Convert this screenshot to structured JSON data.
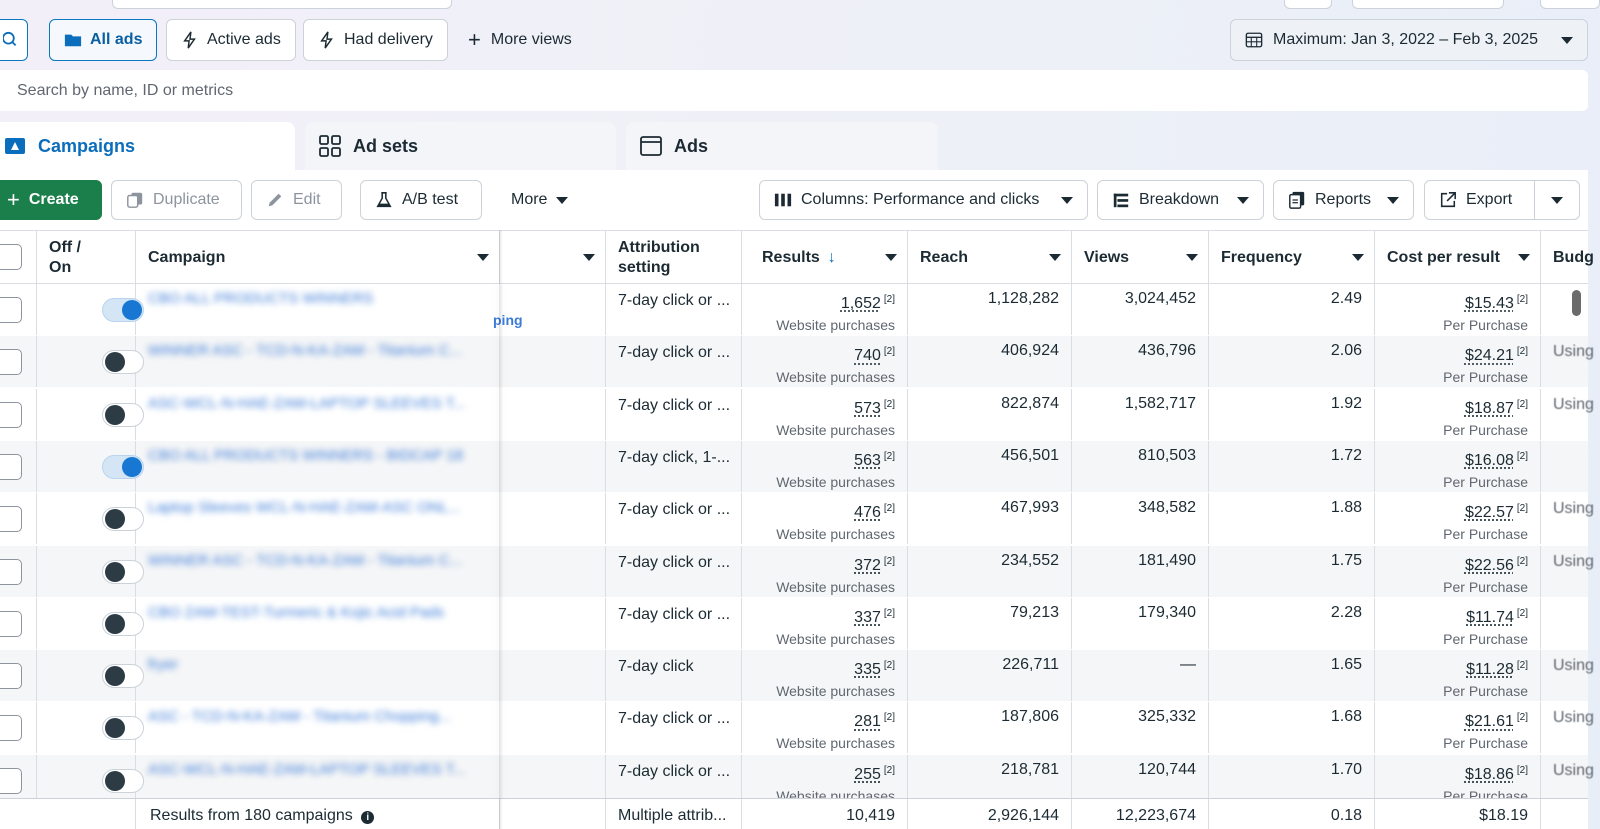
{
  "views": {
    "all_ads": "All ads",
    "active_ads": "Active ads",
    "had_delivery": "Had delivery",
    "more_views": "More views",
    "date_range": "Maximum: Jan 3, 2022 – Feb 3, 2025"
  },
  "search": {
    "placeholder": "Search by name, ID or metrics"
  },
  "tabs": {
    "campaigns": "Campaigns",
    "ad_sets": "Ad sets",
    "ads": "Ads"
  },
  "toolbar": {
    "create": "Create",
    "duplicate": "Duplicate",
    "edit": "Edit",
    "ab_test": "A/B test",
    "more": "More",
    "columns": "Columns: Performance and clicks",
    "breakdown": "Breakdown",
    "reports": "Reports",
    "export": "Export"
  },
  "table": {
    "headers": {
      "off_on": "Off / On",
      "campaign": "Campaign",
      "attribution": "Attribution setting",
      "results": "Results",
      "results_sort_icon": "↓",
      "reach": "Reach",
      "views": "Views",
      "frequency": "Frequency",
      "cost_per_result": "Cost per result",
      "budget": "Budg"
    },
    "result_label": "Website purchases",
    "cost_label": "Per Purchase",
    "footnote": "[2]",
    "partial_tag": "ping",
    "rows": [
      {
        "on": true,
        "campaign": "CBO ALL PRODUCTS WINNERS",
        "attribution": "7-day click or ...",
        "results": "1,652",
        "reach": "1,128,282",
        "views": "3,024,452",
        "frequency": "2.49",
        "cost": "$15.43",
        "budget": ""
      },
      {
        "on": false,
        "campaign": "WINNER ASC - TCD-N-KA-ZAM - Titanium C...",
        "attribution": "7-day click or ...",
        "results": "740",
        "reach": "406,924",
        "views": "436,796",
        "frequency": "2.06",
        "cost": "$24.21",
        "budget": "Using"
      },
      {
        "on": false,
        "campaign": "ASC-WCL-N-HAE-ZAM-LAPTOP SLEEVES T...",
        "attribution": "7-day click or ...",
        "results": "573",
        "reach": "822,874",
        "views": "1,582,717",
        "frequency": "1.92",
        "cost": "$18.87",
        "budget": "Using"
      },
      {
        "on": true,
        "campaign": "CBO ALL PRODUCTS WINNERS - BIDCAP 18",
        "attribution": "7-day click, 1-...",
        "results": "563",
        "reach": "456,501",
        "views": "810,503",
        "frequency": "1.72",
        "cost": "$16.08",
        "budget": ""
      },
      {
        "on": false,
        "campaign": "Laptop Sleeves WCL-N-HAE-ZAM-ASC ONL...",
        "attribution": "7-day click or ...",
        "results": "476",
        "reach": "467,993",
        "views": "348,582",
        "frequency": "1.88",
        "cost": "$22.57",
        "budget": "Using"
      },
      {
        "on": false,
        "campaign": "WINNER ASC - TCD-N-KA-ZAM - Titanium C...",
        "attribution": "7-day click or ...",
        "results": "372",
        "reach": "234,552",
        "views": "181,490",
        "frequency": "1.75",
        "cost": "$22.56",
        "budget": "Using"
      },
      {
        "on": false,
        "campaign": "CBO ZAM-TEST-Turmeric & Kojic Acid Pads",
        "attribution": "7-day click or ...",
        "results": "337",
        "reach": "79,213",
        "views": "179,340",
        "frequency": "2.28",
        "cost": "$11.74",
        "budget": ""
      },
      {
        "on": false,
        "campaign": "fryer",
        "attribution": "7-day click",
        "results": "335",
        "reach": "226,711",
        "views": "—",
        "frequency": "1.65",
        "cost": "$11.28",
        "budget": "Using"
      },
      {
        "on": false,
        "campaign": "ASC - TCD-N-KA-ZAM - Titanium Chopping...",
        "attribution": "7-day click or ...",
        "results": "281",
        "reach": "187,806",
        "views": "325,332",
        "frequency": "1.68",
        "cost": "$21.61",
        "budget": "Using"
      },
      {
        "on": false,
        "campaign": "ASC-WCL-N-HAE-ZAM-LAPTOP SLEEVES T...",
        "attribution": "7-day click or ...",
        "results": "255",
        "reach": "218,781",
        "views": "120,744",
        "frequency": "1.70",
        "cost": "$18.86",
        "budget": "Using"
      }
    ],
    "footer": {
      "label": "Results from 180 campaigns",
      "attribution": "Multiple attrib...",
      "results": "10,419",
      "reach": "2,926,144",
      "views": "12,223,674",
      "frequency": "0.18",
      "cost": "$18.19"
    }
  },
  "colors": {
    "accent": "#0a6ebd",
    "create": "#1a7f4b",
    "toggle_on": "#1877d2"
  }
}
